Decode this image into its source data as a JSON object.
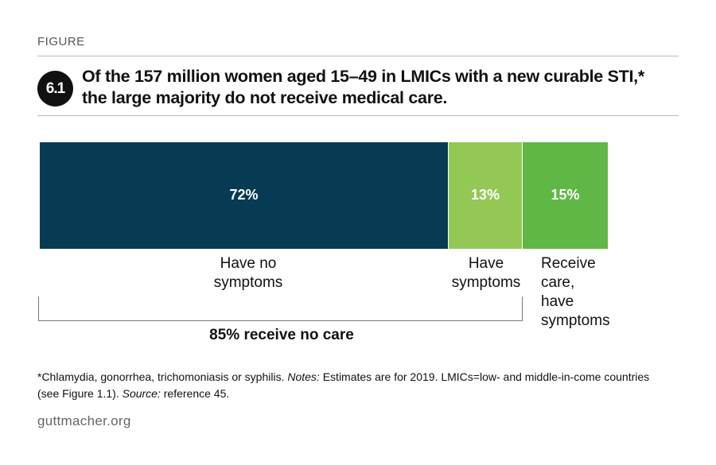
{
  "figure_label": "FIGURE",
  "badge": "6.1",
  "title": "Of the 157 million women aged 15–49 in LMICs with a new curable STI,* the large majority do not receive medical care.",
  "chart_data": {
    "type": "bar",
    "orientation": "horizontal",
    "stacked": true,
    "segments": [
      {
        "label": "Have no symptoms",
        "value": 72,
        "value_label": "72%",
        "color": "#073b53"
      },
      {
        "label": "Have symptoms",
        "value": 13,
        "value_label": "13%",
        "color": "#93c856"
      },
      {
        "label": "Receive care, have symptoms",
        "value": 15,
        "value_label": "15%",
        "color": "#5fb845"
      }
    ],
    "bracket": {
      "spans": [
        "Have no symptoms",
        "Have symptoms"
      ],
      "label": "85% receive no care"
    }
  },
  "labels": {
    "seg1": [
      "Have no",
      "symptoms"
    ],
    "seg2": [
      "Have",
      "symptoms"
    ],
    "seg3": [
      "Receive",
      "care,",
      "have",
      "symptoms"
    ]
  },
  "note": {
    "prefix": "*Chlamydia, gonorrhea, trichomoniasis or syphilis. ",
    "notes_label": "Notes:",
    "notes_text": " Estimates are for 2019. LMICs=low- and middle-in-come countries (see Figure 1.1). ",
    "source_label": "Source:",
    "source_text": " reference 45."
  },
  "brand": "guttmacher.org"
}
